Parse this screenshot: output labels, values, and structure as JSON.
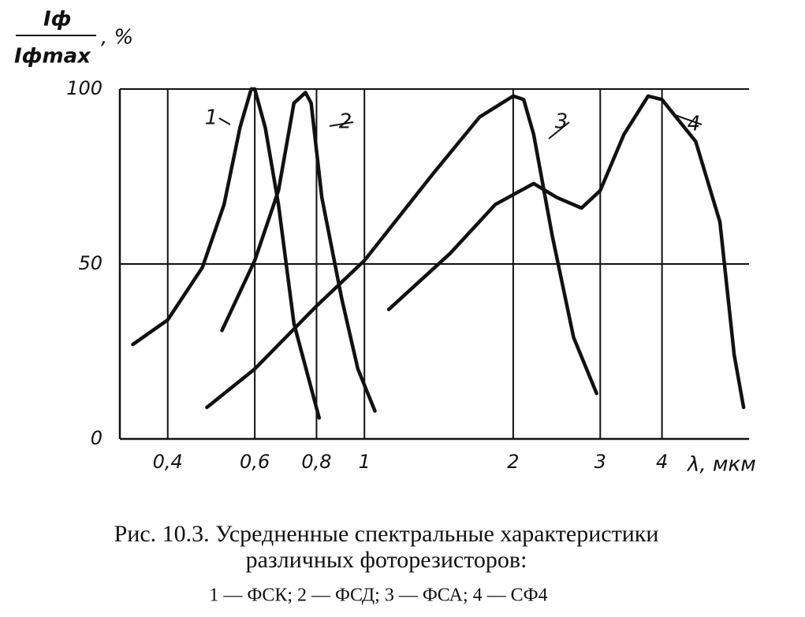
{
  "chart_data": {
    "type": "line",
    "x_log": true,
    "grid": true,
    "color": "#111",
    "y_label": {
      "numerator": "Iф",
      "denominator": "Iфmax",
      "unit": ", %"
    },
    "x_label": "λ, мкм",
    "xlim": [
      0.32,
      6
    ],
    "ylim": [
      0,
      100
    ],
    "xticks": [
      {
        "value": 0.4,
        "label": "0,4"
      },
      {
        "value": 0.6,
        "label": "0,6"
      },
      {
        "value": 0.8,
        "label": "0,8"
      },
      1,
      2,
      3,
      4
    ],
    "yticks": [
      0,
      50,
      100
    ],
    "series": [
      {
        "name": "1",
        "x": [
          0.34,
          0.4,
          0.47,
          0.52,
          0.56,
          0.59,
          0.6,
          0.63,
          0.67,
          0.72,
          0.81
        ],
        "values": [
          27,
          34,
          49,
          67,
          89,
          100,
          100,
          89,
          67,
          33,
          6
        ]
      },
      {
        "name": "2",
        "x": [
          0.515,
          0.6,
          0.67,
          0.72,
          0.76,
          0.78,
          0.82,
          0.9,
          0.97,
          1.05
        ],
        "values": [
          31,
          51,
          71,
          96,
          99,
          96,
          69,
          40,
          20,
          8
        ]
      },
      {
        "name": "3",
        "x": [
          0.48,
          0.6,
          0.8,
          1,
          1.38,
          1.71,
          2,
          2.1,
          2.2,
          2.4,
          2.65,
          2.95
        ],
        "values": [
          9,
          20,
          38,
          51,
          76,
          92,
          98,
          97,
          87,
          58,
          29,
          13
        ]
      },
      {
        "name": "4",
        "x": [
          1.12,
          1.49,
          1.84,
          2.2,
          2.45,
          2.75,
          3,
          3.35,
          3.75,
          4,
          4.68,
          5.24,
          5.6,
          5.85
        ],
        "values": [
          37,
          53,
          67,
          73,
          69,
          66,
          71,
          87,
          98,
          97,
          85,
          62,
          24,
          9
        ]
      }
    ],
    "caption": "Рис. 10.3. Усредненные спектральные характеристики",
    "caption_line2": "различных фоторезисторов:",
    "caption_legend": "1 — ФСК; 2 — ФСД; 3 — ФСА; 4 — СФ4"
  }
}
